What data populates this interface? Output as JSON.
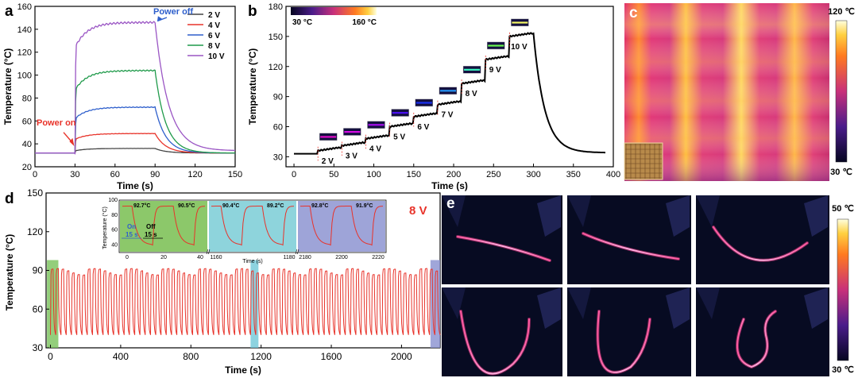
{
  "panels": {
    "a": {
      "letter": "a",
      "chart_data": {
        "type": "line",
        "xlabel": "Time (s)",
        "ylabel": "Temperature (°C)",
        "xlim": [
          0,
          150
        ],
        "ylim": [
          20,
          160
        ],
        "xticks": [
          0,
          30,
          60,
          90,
          120,
          150
        ],
        "yticks": [
          20,
          40,
          60,
          80,
          100,
          120,
          140,
          160
        ],
        "legend_position": "top-right",
        "series": [
          {
            "name": "2 V",
            "color": "#444444",
            "on": 30,
            "off": 90,
            "base": 32,
            "plateau": 36,
            "rise": 34
          },
          {
            "name": "4 V",
            "color": "#e8332a",
            "on": 30,
            "off": 90,
            "base": 32,
            "plateau": 49,
            "rise": 44
          },
          {
            "name": "6 V",
            "color": "#2e5fcc",
            "on": 30,
            "off": 90,
            "base": 32,
            "plateau": 72,
            "rise": 62
          },
          {
            "name": "8 V",
            "color": "#1f9a4a",
            "on": 30,
            "off": 90,
            "base": 32,
            "plateau": 104,
            "rise": 87
          },
          {
            "name": "10 V",
            "color": "#9a55c4",
            "on": 30,
            "off": 90,
            "base": 32,
            "plateau": 146,
            "rise": 124
          }
        ],
        "annotations": [
          {
            "text": "Power on",
            "x": 30,
            "y": 40,
            "color": "#e8332a"
          },
          {
            "text": "Power off",
            "x": 91,
            "y": 146,
            "color": "#2e5fcc"
          }
        ]
      }
    },
    "b": {
      "letter": "b",
      "chart_data": {
        "type": "line",
        "xlabel": "Time (s)",
        "ylabel": "Temperature (°C)",
        "xlim": [
          -10,
          400
        ],
        "ylim": [
          20,
          180
        ],
        "xticks": [
          0,
          50,
          100,
          150,
          200,
          250,
          300,
          350,
          400
        ],
        "yticks": [
          30,
          60,
          90,
          120,
          150,
          180
        ],
        "colorbar": {
          "min_label": "30 °C",
          "max_label": "160 °C"
        },
        "steps": [
          {
            "label": "2 V",
            "start": 30,
            "temp": 36
          },
          {
            "label": "3 V",
            "start": 60,
            "temp": 41
          },
          {
            "label": "4 V",
            "start": 90,
            "temp": 48
          },
          {
            "label": "5 V",
            "start": 120,
            "temp": 60
          },
          {
            "label": "6 V",
            "start": 150,
            "temp": 70
          },
          {
            "label": "7 V",
            "start": 180,
            "temp": 82
          },
          {
            "label": "8 V",
            "start": 210,
            "temp": 103
          },
          {
            "label": "9 V",
            "start": 240,
            "temp": 127
          },
          {
            "label": "10 V",
            "start": 270,
            "temp": 150
          }
        ],
        "series": [
          {
            "name": "",
            "color": "#000000",
            "base": 33,
            "off": 300,
            "final": 34
          }
        ]
      }
    },
    "c": {
      "letter": "c",
      "colorbar": {
        "max_label": "120 ℃",
        "min_label": "30 ℃"
      }
    },
    "d": {
      "letter": "d",
      "voltage_label": "8 V",
      "chart_data": {
        "type": "line",
        "xlabel": "Time (s)",
        "ylabel": "Temperature (°C)",
        "xlim": [
          -25,
          2220
        ],
        "ylim": [
          30,
          150
        ],
        "xticks": [
          0,
          400,
          800,
          1200,
          1600,
          2000
        ],
        "yticks": [
          30,
          60,
          90,
          120,
          150
        ],
        "cycle_period_s": 30,
        "on_s": 15,
        "off_s": 15,
        "peak_c": 91,
        "trough_c": 40,
        "highlights": [
          {
            "from": -20,
            "to": 45,
            "color": "#78c25a"
          },
          {
            "from": 1140,
            "to": 1185,
            "color": "#70c8d8"
          },
          {
            "from": 2165,
            "to": 2220,
            "color": "#8890d0"
          }
        ],
        "series": [
          {
            "name": "",
            "color": "#e8332a"
          }
        ]
      },
      "inset": {
        "ylabel": "Temperature (°C)",
        "xlabel": "Time (s)",
        "yticks": [
          40,
          60,
          80,
          100
        ],
        "segments": [
          {
            "bg": "#8cc86a",
            "xticks": [
              "0",
              "20",
              "40"
            ],
            "peaks": [
              "92.7°C",
              "90.5°C"
            ]
          },
          {
            "bg": "#8ed4dc",
            "xticks": [
              "1160",
              "1180"
            ],
            "peaks": [
              "90.4°C",
              "89.2°C"
            ]
          },
          {
            "bg": "#9ea4d8",
            "xticks": [
              "2180",
              "2200",
              "2220"
            ],
            "peaks": [
              "92.8°C",
              "91.9°C"
            ]
          }
        ],
        "on_label": "On",
        "on_time": "15 s",
        "off_label": "Off",
        "off_time": "15 s"
      }
    },
    "e": {
      "letter": "e",
      "colorbar": {
        "max_label": "50 ℃",
        "min_label": "30 ℃"
      },
      "frames": 6
    }
  }
}
